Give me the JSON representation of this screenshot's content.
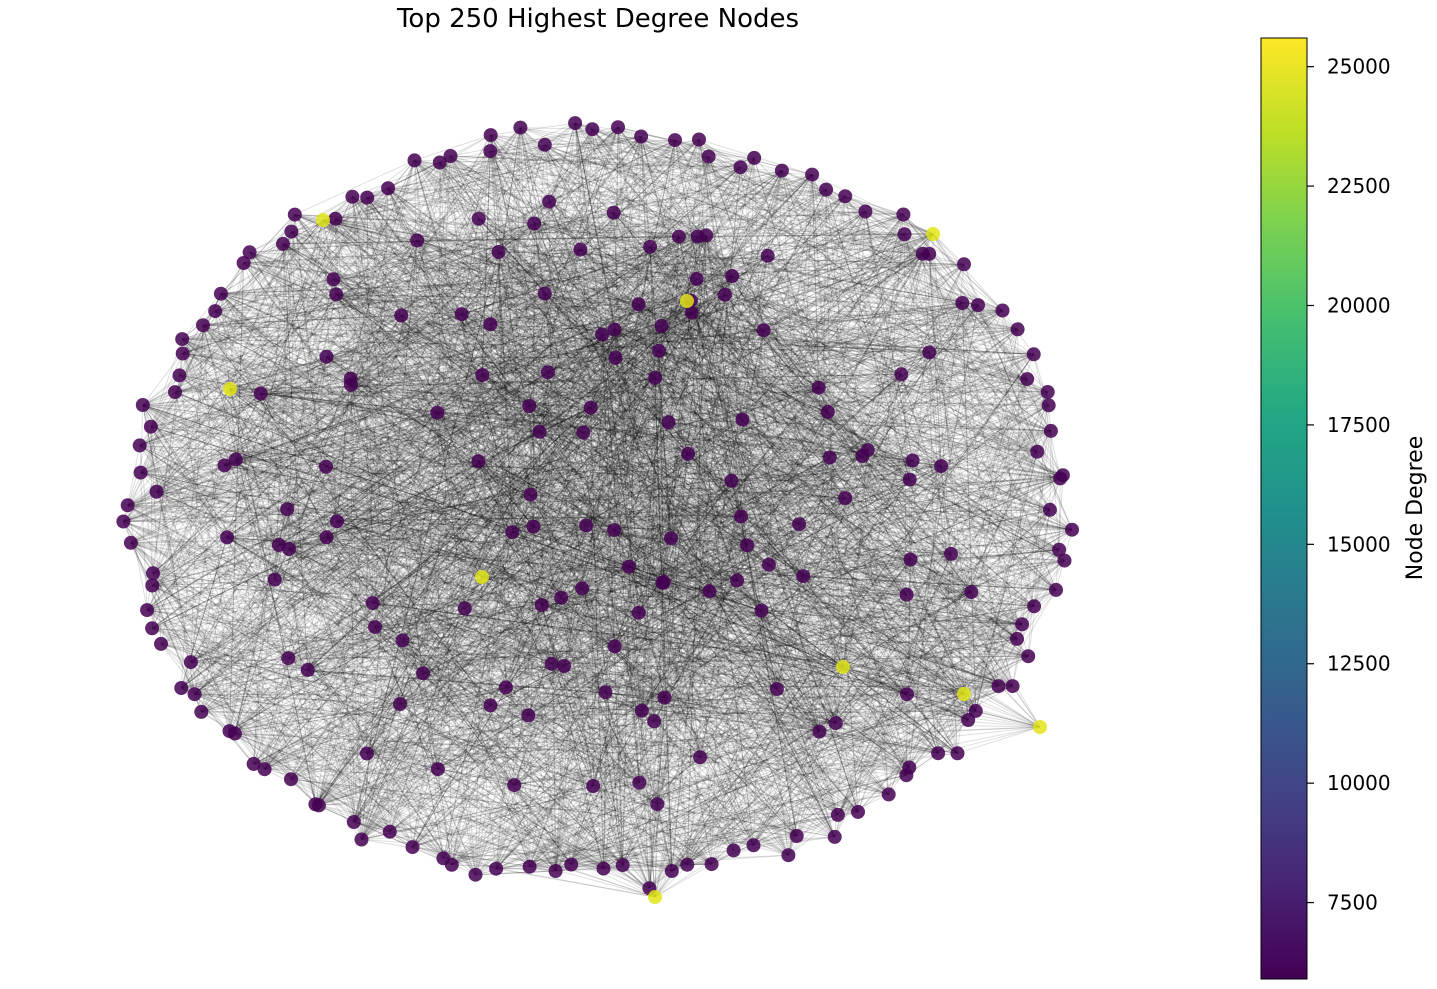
{
  "title": "Top 250 Highest Degree Nodes",
  "colorbar": {
    "label": "Node Degree",
    "min": 5900,
    "max": 25600,
    "colormap": "viridis",
    "ticks": [
      7500,
      10000,
      12500,
      15000,
      17500,
      20000,
      22500,
      25000
    ],
    "tick_labels": [
      "7500",
      "10000",
      "12500",
      "15000",
      "17500",
      "20000",
      "22500",
      "25000"
    ]
  },
  "network": {
    "node_count": 250,
    "edge_color": "#000000",
    "node_base_color": "#440154",
    "hub_color": "#e2e418"
  },
  "chart_data": {
    "type": "network",
    "title": "Top 250 Highest Degree Nodes",
    "colorbar_label": "Node Degree",
    "color_range": [
      5900,
      25600
    ],
    "high_degree_nodes_degree": [
      25000,
      25200,
      24800,
      25600,
      24900,
      25100,
      24700,
      25300,
      24600
    ]
  }
}
